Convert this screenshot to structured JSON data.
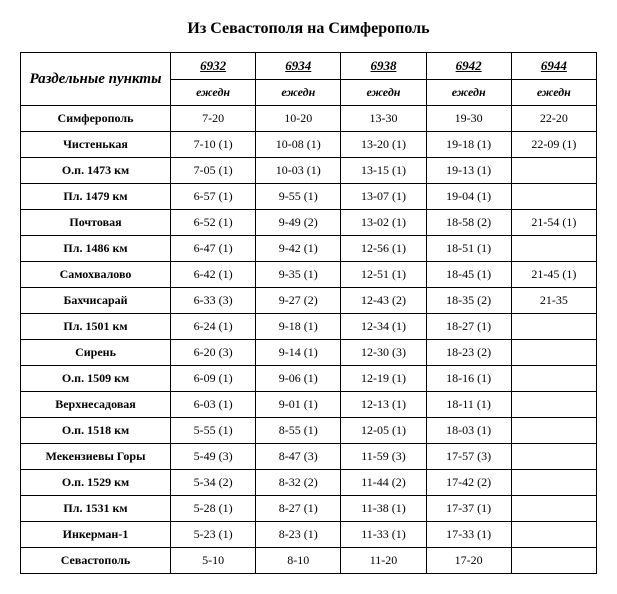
{
  "title": "Из Севастополя на Симферополь",
  "header": {
    "station_label": "Раздельные пункты",
    "trains": [
      "6932",
      "6934",
      "6938",
      "6942",
      "6944"
    ],
    "frequency": [
      "ежедн",
      "ежедн",
      "ежедн",
      "ежедн",
      "ежедн"
    ]
  },
  "rows": [
    {
      "station": "Симферополь",
      "cells": [
        "7-20",
        "10-20",
        "13-30",
        "19-30",
        "22-20"
      ]
    },
    {
      "station": "Чистенькая",
      "cells": [
        "7-10 (1)",
        "10-08 (1)",
        "13-20 (1)",
        "19-18 (1)",
        "22-09 (1)"
      ]
    },
    {
      "station": "О.п. 1473 км",
      "cells": [
        "7-05 (1)",
        "10-03 (1)",
        "13-15 (1)",
        "19-13 (1)",
        ""
      ]
    },
    {
      "station": "Пл. 1479 км",
      "cells": [
        "6-57 (1)",
        "9-55 (1)",
        "13-07 (1)",
        "19-04 (1)",
        ""
      ]
    },
    {
      "station": "Почтовая",
      "cells": [
        "6-52 (1)",
        "9-49 (2)",
        "13-02 (1)",
        "18-58 (2)",
        "21-54 (1)"
      ]
    },
    {
      "station": "Пл. 1486 км",
      "cells": [
        "6-47 (1)",
        "9-42 (1)",
        "12-56 (1)",
        "18-51 (1)",
        ""
      ]
    },
    {
      "station": "Самохвалово",
      "cells": [
        "6-42 (1)",
        "9-35 (1)",
        "12-51 (1)",
        "18-45 (1)",
        "21-45 (1)"
      ]
    },
    {
      "station": "Бахчисарай",
      "cells": [
        "6-33 (3)",
        "9-27 (2)",
        "12-43 (2)",
        "18-35 (2)",
        "21-35"
      ]
    },
    {
      "station": "Пл. 1501 км",
      "cells": [
        "6-24 (1)",
        "9-18 (1)",
        "12-34 (1)",
        "18-27 (1)",
        ""
      ]
    },
    {
      "station": "Сирень",
      "cells": [
        "6-20 (3)",
        "9-14 (1)",
        "12-30 (3)",
        "18-23 (2)",
        ""
      ]
    },
    {
      "station": "О.п. 1509 км",
      "cells": [
        "6-09 (1)",
        "9-06 (1)",
        "12-19 (1)",
        "18-16 (1)",
        ""
      ]
    },
    {
      "station": "Верхнесадовая",
      "cells": [
        "6-03 (1)",
        "9-01 (1)",
        "12-13 (1)",
        "18-11 (1)",
        ""
      ]
    },
    {
      "station": "О.п. 1518 км",
      "cells": [
        "5-55 (1)",
        "8-55 (1)",
        "12-05 (1)",
        "18-03 (1)",
        ""
      ]
    },
    {
      "station": "Мекензиевы Горы",
      "cells": [
        "5-49 (3)",
        "8-47 (3)",
        "11-59 (3)",
        "17-57 (3)",
        ""
      ]
    },
    {
      "station": "О.п. 1529 км",
      "cells": [
        "5-34 (2)",
        "8-32 (2)",
        "11-44 (2)",
        "17-42 (2)",
        ""
      ]
    },
    {
      "station": "Пл. 1531 км",
      "cells": [
        "5-28 (1)",
        "8-27 (1)",
        "11-38 (1)",
        "17-37 (1)",
        ""
      ]
    },
    {
      "station": "Инкерман-1",
      "cells": [
        "5-23 (1)",
        "8-23 (1)",
        "11-33 (1)",
        "17-33 (1)",
        ""
      ]
    },
    {
      "station": "Севастополь",
      "cells": [
        "5-10",
        "8-10",
        "11-20",
        "17-20",
        ""
      ]
    }
  ]
}
